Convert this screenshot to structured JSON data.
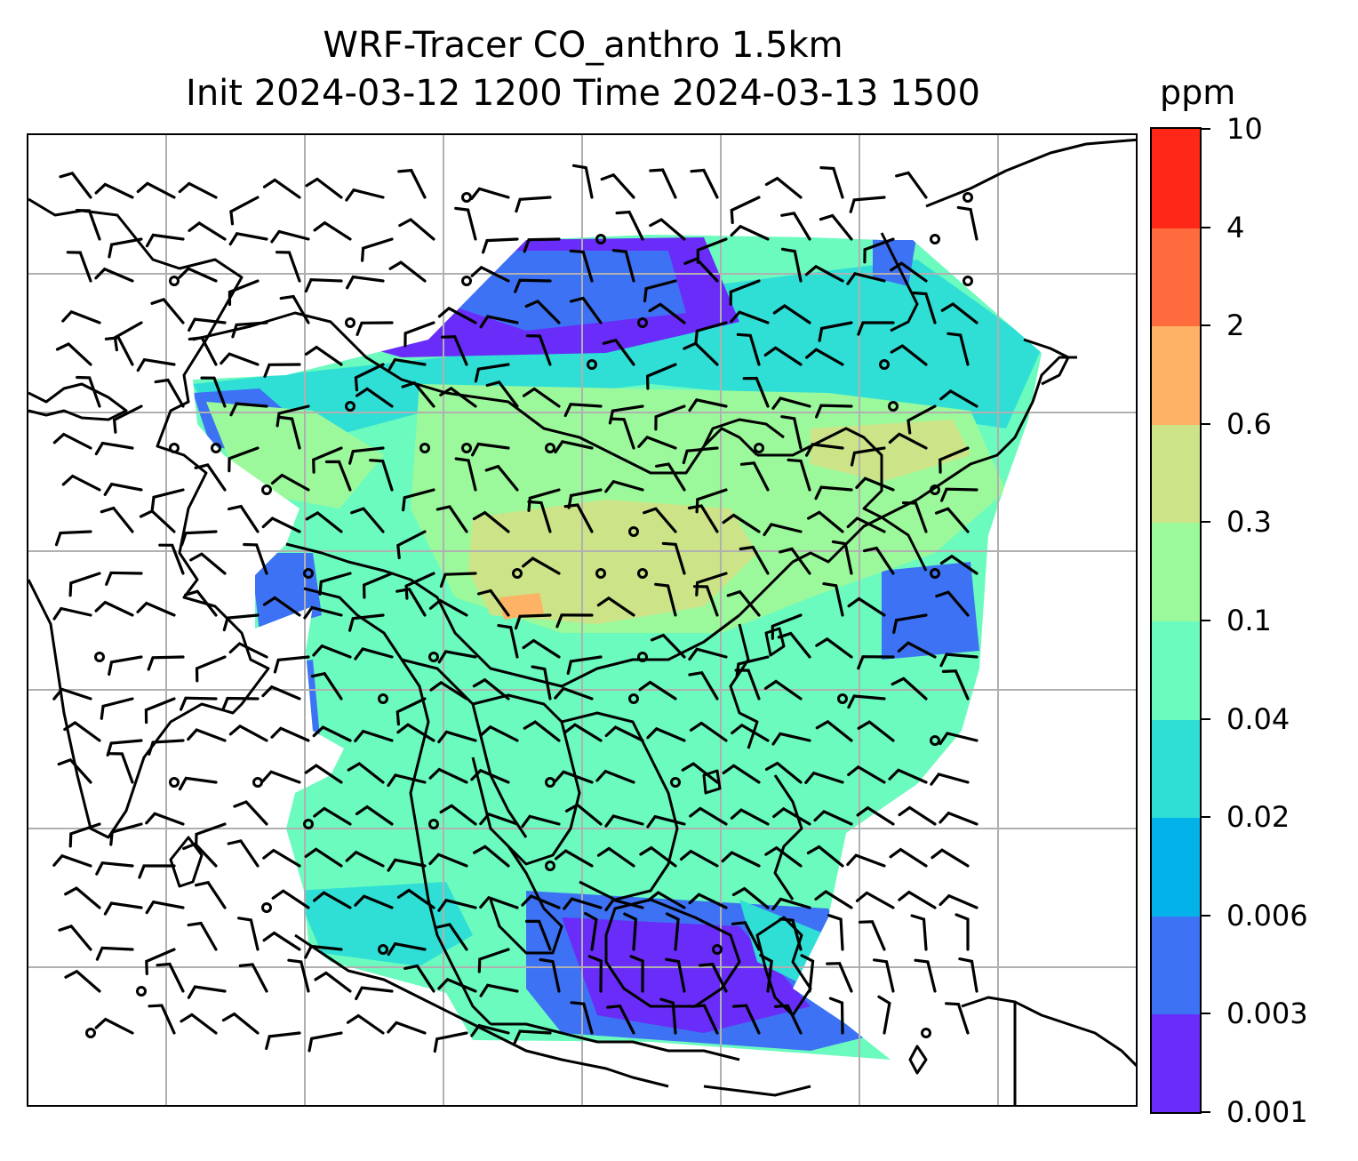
{
  "title": {
    "line1": "WRF-Tracer CO_anthro 1.5km",
    "line2": "Init 2024-03-12 1200 Time 2024-03-13 1500"
  },
  "colorbar": {
    "units": "ppm",
    "levels": [
      "0.001",
      "0.003",
      "0.006",
      "0.02",
      "0.04",
      "0.1",
      "0.3",
      "0.6",
      "2",
      "4",
      "10"
    ],
    "colors": [
      "#6a2cf8",
      "#3d72f4",
      "#04b2ea",
      "#2fdfd6",
      "#6bfbbe",
      "#9cf99b",
      "#cde388",
      "#fdb265",
      "#fe6b3c",
      "#ff2717"
    ]
  },
  "map": {
    "coastline_color": "#000000",
    "gridline_color": "#b0b0b0",
    "barb_color": "#000000"
  }
}
